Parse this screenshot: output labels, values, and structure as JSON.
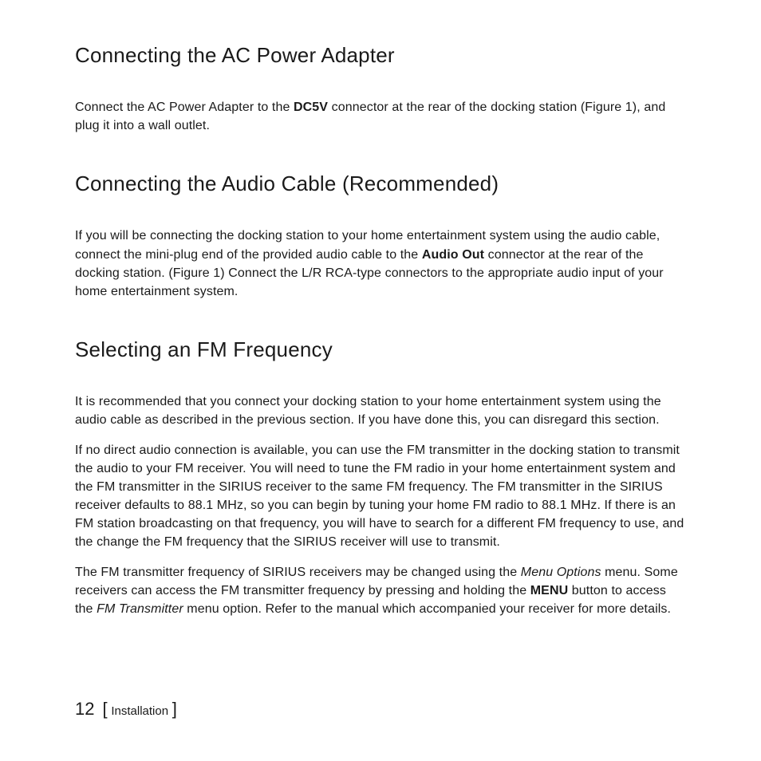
{
  "sections": [
    {
      "heading": "Connecting the AC Power Adapter",
      "paragraphs": [
        {
          "runs": [
            {
              "t": "Connect the AC Power Adapter to the "
            },
            {
              "t": "DC5V",
              "bold": true
            },
            {
              "t": " connector at the rear of the docking station (Figure 1), and plug it into a wall outlet."
            }
          ]
        }
      ]
    },
    {
      "heading": "Connecting the Audio Cable (Recommended)",
      "paragraphs": [
        {
          "runs": [
            {
              "t": "If you will be connecting the docking station to your home entertainment system using the audio cable, connect the mini-plug end of the provided audio cable to the "
            },
            {
              "t": "Audio Out",
              "bold": true
            },
            {
              "t": " connector at the rear of the docking station. (Figure 1) Connect the L/R RCA-type connectors to the appropriate audio input of your home entertainment system."
            }
          ]
        }
      ]
    },
    {
      "heading": "Selecting an FM Frequency",
      "paragraphs": [
        {
          "runs": [
            {
              "t": "It is recommended that you connect your docking station to your home entertainment system using the audio cable as described in the previous section. If you have done this, you can disregard this section."
            }
          ]
        },
        {
          "runs": [
            {
              "t": "If no direct audio connection is available, you can use the FM transmitter in the docking station to transmit the audio to your FM receiver. You will need to tune the FM radio in your home entertainment system and the FM transmitter in the SIRIUS receiver to the same FM frequency. The FM transmitter in the SIRIUS receiver defaults to 88.1 MHz, so you can begin by tuning your home FM radio to 88.1 MHz. If there is an FM station broadcasting on that frequency, you will have to search for a different FM frequency to use, and the change the FM frequency that the SIRIUS receiver will use to transmit."
            }
          ]
        },
        {
          "runs": [
            {
              "t": "The FM transmitter frequency of SIRIUS receivers may be changed using the "
            },
            {
              "t": "Menu Options",
              "italic": true
            },
            {
              "t": " menu. Some receivers can access the FM transmitter frequency by pressing and holding the "
            },
            {
              "t": "MENU",
              "bold": true
            },
            {
              "t": " button to access the "
            },
            {
              "t": "FM Transmitter",
              "italic": true
            },
            {
              "t": " menu option. Refer to the manual which accompanied your receiver for more details."
            }
          ]
        }
      ]
    }
  ],
  "footer": {
    "page_number": "12",
    "open_bracket": "[",
    "label": "Installation",
    "close_bracket": "]"
  }
}
